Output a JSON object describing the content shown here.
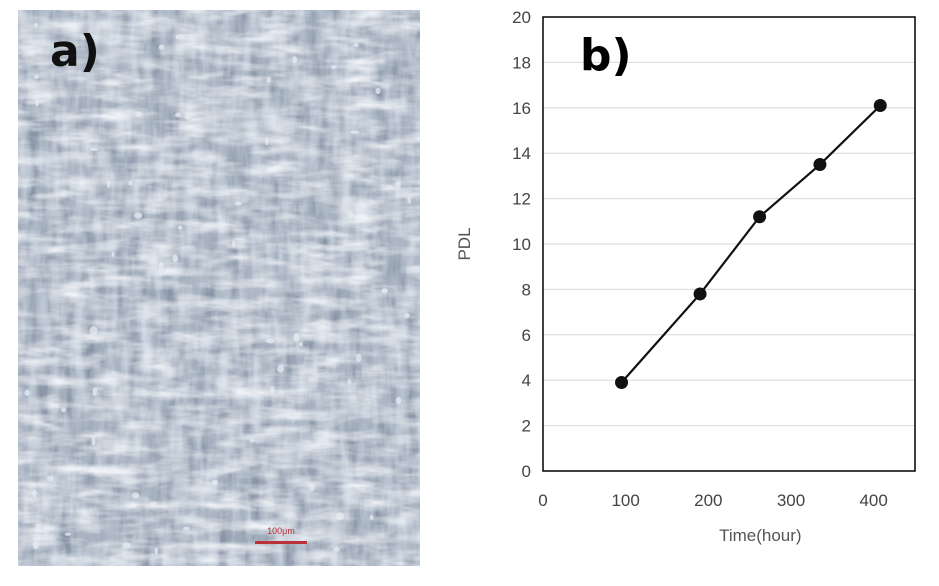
{
  "panels": {
    "a": {
      "label": "a)",
      "scale_bar_text": "100μm"
    },
    "b": {
      "label": "b)"
    }
  },
  "chart_data": {
    "type": "line",
    "title": "",
    "xlabel": "Time(hour)",
    "ylabel": "PDL",
    "xlim": [
      0,
      450
    ],
    "ylim": [
      0,
      20
    ],
    "xticks": [
      0,
      100,
      200,
      300,
      400
    ],
    "yticks": [
      0,
      2,
      4,
      6,
      8,
      10,
      12,
      14,
      16,
      18,
      20
    ],
    "grid": "horizontal",
    "series": [
      {
        "x": [
          95,
          190,
          262,
          335,
          408
        ],
        "y": [
          3.9,
          7.8,
          11.2,
          13.5,
          16.1
        ],
        "color": "#111111",
        "marker": "circle"
      }
    ]
  },
  "colors": {
    "scale_bar": "#b83238",
    "gridline": "#d9d9d9",
    "axis": "#000000"
  }
}
